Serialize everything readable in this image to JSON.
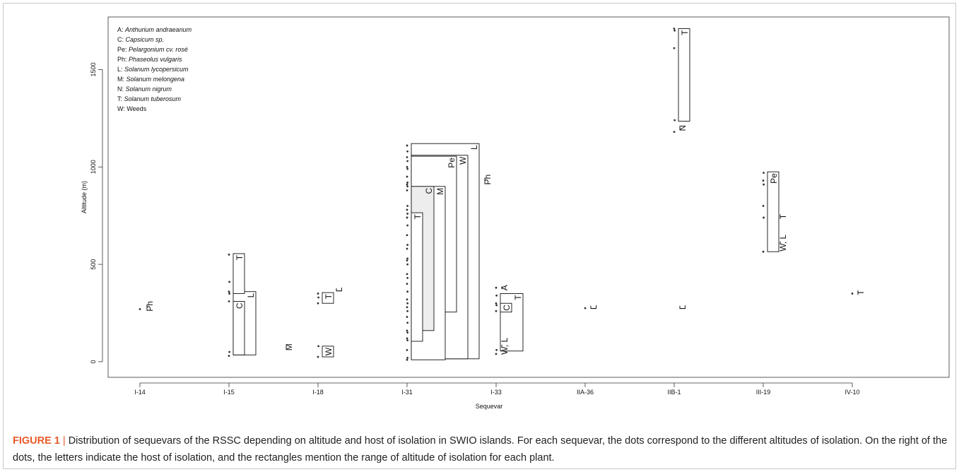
{
  "chart_data": {
    "type": "scatter",
    "xlabel": "Sequevar",
    "ylabel": "Altitude (m)",
    "ylim": [
      -80,
      1770
    ],
    "categories": [
      "I-14",
      "I-15",
      "I-18",
      "I-31",
      "I-33",
      "IIA-36",
      "IIB-1",
      "III-19",
      "IV-10"
    ],
    "yticks": [
      0,
      500,
      1000,
      1500
    ],
    "legend": {
      "placement": "top-left",
      "entries": [
        {
          "code": "A:",
          "name": "Anthurium andraeanum"
        },
        {
          "code": "C:",
          "name": "Capsicum sp."
        },
        {
          "code": "Pe:",
          "name": "Pelargonium cv. rosé"
        },
        {
          "code": "Ph:",
          "name": "Phaseolus vulgaris"
        },
        {
          "code": "L:",
          "name": "Solanum lycopersicum"
        },
        {
          "code": "M:",
          "name": "Solanum melongena"
        },
        {
          "code": "N:",
          "name": "Solanum nigrum"
        },
        {
          "code": "T:",
          "name": "Solanum tuberosum"
        },
        {
          "code": "W:",
          "name": "Weeds"
        }
      ]
    },
    "points": [
      {
        "seq": "I-14",
        "alt": [
          270
        ]
      },
      {
        "seq": "I-15",
        "alt": [
          30,
          50,
          310,
          350,
          360,
          410,
          550
        ]
      },
      {
        "seq": "I-18",
        "alt": [
          25,
          80,
          300,
          330,
          350
        ]
      },
      {
        "seq": "I-31",
        "alt": [
          10,
          20,
          60,
          110,
          120,
          150,
          160,
          200,
          230,
          260,
          280,
          300,
          320,
          360,
          400,
          430,
          450,
          500,
          520,
          530,
          580,
          600,
          650,
          700,
          740,
          760,
          780,
          800,
          880,
          900,
          910,
          920,
          950,
          990,
          1000,
          1030,
          1050,
          1080,
          1110
        ]
      },
      {
        "seq": "I-33",
        "alt": [
          40,
          60,
          260,
          290,
          300,
          340,
          380
        ]
      },
      {
        "seq": "IIA-36",
        "alt": [
          275
        ]
      },
      {
        "seq": "IIB-1",
        "alt": [
          1180,
          1240,
          1610,
          1700,
          1710
        ]
      },
      {
        "seq": "III-19",
        "alt": [
          565,
          740,
          800,
          910,
          930,
          970
        ]
      },
      {
        "seq": "IV-10",
        "alt": [
          350
        ]
      }
    ],
    "host_ranges": [
      {
        "seq": "I-15",
        "host": "T",
        "min": 350,
        "max": 555,
        "col": 0
      },
      {
        "seq": "I-15",
        "host": "C",
        "min": 35,
        "max": 310,
        "col": 0
      },
      {
        "seq": "I-15",
        "host": "L",
        "min": 35,
        "max": 360,
        "col": 1
      },
      {
        "seq": "I-18",
        "host": "T",
        "min": 300,
        "max": 355,
        "col": 0
      },
      {
        "seq": "I-18",
        "host": "W",
        "min": 25,
        "max": 80,
        "col": 0
      },
      {
        "seq": "I-31",
        "host": "T",
        "min": 105,
        "max": 765,
        "col": 0
      },
      {
        "seq": "I-31",
        "host": "C",
        "min": 160,
        "max": 900,
        "col": 1,
        "shaded": true
      },
      {
        "seq": "I-31",
        "host": "M",
        "min": 10,
        "max": 900,
        "col": 2
      },
      {
        "seq": "I-31",
        "host": "Pe",
        "min": 255,
        "max": 1055,
        "col": 3
      },
      {
        "seq": "I-31",
        "host": "W",
        "min": 15,
        "max": 1060,
        "col": 4
      },
      {
        "seq": "I-31",
        "host": "L",
        "min": 15,
        "max": 1120,
        "col": 5
      },
      {
        "seq": "I-33",
        "host": "C",
        "min": 255,
        "max": 300,
        "col": 0
      },
      {
        "seq": "I-33",
        "host": "T",
        "min": 55,
        "max": 350,
        "col": 1
      },
      {
        "seq": "IIB-1",
        "host": "T",
        "min": 1235,
        "max": 1710,
        "col": 0
      },
      {
        "seq": "III-19",
        "host": "Pe",
        "min": 565,
        "max": 975,
        "col": 0
      }
    ],
    "host_labels": [
      {
        "seq": "I-14",
        "text": "Ph",
        "alt": 285,
        "dx": 14
      },
      {
        "seq": "I-15",
        "text": "M",
        "alt": 75,
        "dx": 85
      },
      {
        "seq": "I-18",
        "text": "L",
        "alt": 370,
        "dx": 30
      },
      {
        "seq": "I-31",
        "text": "Ph",
        "alt": 935,
        "dx": 114
      },
      {
        "seq": "I-33",
        "text": "A",
        "alt": 380,
        "dx": 12
      },
      {
        "seq": "I-33",
        "text": "W, L",
        "alt": 80,
        "dx": 12
      },
      {
        "seq": "IIA-36",
        "text": "L",
        "alt": 280,
        "dx": 12
      },
      {
        "seq": "IIB-1",
        "text": "N",
        "alt": 1200,
        "dx": 12
      },
      {
        "seq": "IIB-1",
        "text": "L",
        "alt": 280,
        "dx": 12
      },
      {
        "seq": "III-19",
        "text": "T",
        "alt": 745,
        "dx": 28
      },
      {
        "seq": "III-19",
        "text": "W, L",
        "alt": 610,
        "dx": 28
      },
      {
        "seq": "IV-10",
        "text": "T",
        "alt": 355,
        "dx": 12
      }
    ]
  },
  "caption": {
    "label": "FIGURE 1",
    "separator": " | ",
    "text": "Distribution of sequevars of the RSSC depending on altitude and host of isolation in SWIO islands. For each sequevar, the dots correspond to the different altitudes of isolation. On the right of the dots, the letters indicate the host of isolation, and the rectangles mention the range of altitude of isolation for each plant."
  },
  "colors": {
    "axis": "#333333",
    "dot": "#333333",
    "shaded_box": "#ededed",
    "caption_label": "#e65a28"
  }
}
